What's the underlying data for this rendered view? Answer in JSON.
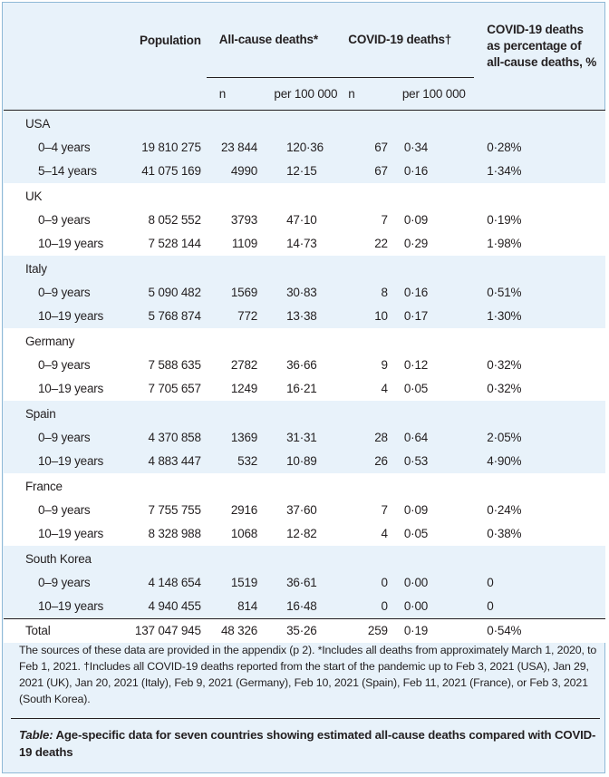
{
  "header": {
    "population": "Population",
    "all_cause": "All-cause deaths*",
    "covid": "COVID-19 deaths†",
    "pct": [
      "COVID-19 deaths",
      "as percentage of",
      "all-cause deaths, %"
    ],
    "n": "n",
    "per": "per 100 000"
  },
  "groups": [
    {
      "country": "USA",
      "rows": [
        {
          "age": "0–4 years",
          "pop": "19 810 275",
          "ac_n": "23 844",
          "ac_per": "120·36",
          "cv_n": "67",
          "cv_per": "0·34",
          "pct": "0·28%"
        },
        {
          "age": "5–14 years",
          "pop": "41 075 169",
          "ac_n": "4990",
          "ac_per": "12·15",
          "cv_n": "67",
          "cv_per": "0·16",
          "pct": "1·34%"
        }
      ]
    },
    {
      "country": "UK",
      "rows": [
        {
          "age": "0–9 years",
          "pop": "8 052 552",
          "ac_n": "3793",
          "ac_per": "47·10",
          "cv_n": "7",
          "cv_per": "0·09",
          "pct": "0·19%"
        },
        {
          "age": "10–19 years",
          "pop": "7 528 144",
          "ac_n": "1109",
          "ac_per": "14·73",
          "cv_n": "22",
          "cv_per": "0·29",
          "pct": "1·98%"
        }
      ]
    },
    {
      "country": "Italy",
      "rows": [
        {
          "age": "0–9 years",
          "pop": "5 090 482",
          "ac_n": "1569",
          "ac_per": "30·83",
          "cv_n": "8",
          "cv_per": "0·16",
          "pct": "0·51%"
        },
        {
          "age": "10–19 years",
          "pop": "5 768 874",
          "ac_n": "772",
          "ac_per": "13·38",
          "cv_n": "10",
          "cv_per": "0·17",
          "pct": "1·30%"
        }
      ]
    },
    {
      "country": "Germany",
      "rows": [
        {
          "age": "0–9 years",
          "pop": "7 588 635",
          "ac_n": "2782",
          "ac_per": "36·66",
          "cv_n": "9",
          "cv_per": "0·12",
          "pct": "0·32%"
        },
        {
          "age": "10–19 years",
          "pop": "7 705 657",
          "ac_n": "1249",
          "ac_per": "16·21",
          "cv_n": "4",
          "cv_per": "0·05",
          "pct": "0·32%"
        }
      ]
    },
    {
      "country": "Spain",
      "rows": [
        {
          "age": "0–9 years",
          "pop": "4 370 858",
          "ac_n": "1369",
          "ac_per": "31·31",
          "cv_n": "28",
          "cv_per": "0·64",
          "pct": "2·05%"
        },
        {
          "age": "10–19 years",
          "pop": "4 883 447",
          "ac_n": "532",
          "ac_per": "10·89",
          "cv_n": "26",
          "cv_per": "0·53",
          "pct": "4·90%"
        }
      ]
    },
    {
      "country": "France",
      "rows": [
        {
          "age": "0–9 years",
          "pop": "7 755 755",
          "ac_n": "2916",
          "ac_per": "37·60",
          "cv_n": "7",
          "cv_per": "0·09",
          "pct": "0·24%"
        },
        {
          "age": "10–19 years",
          "pop": "8 328 988",
          "ac_n": "1068",
          "ac_per": "12·82",
          "cv_n": "4",
          "cv_per": "0·05",
          "pct": "0·38%"
        }
      ]
    },
    {
      "country": "South Korea",
      "rows": [
        {
          "age": "0–9 years",
          "pop": "4 148 654",
          "ac_n": "1519",
          "ac_per": "36·61",
          "cv_n": "0",
          "cv_per": "0·00",
          "pct": "0"
        },
        {
          "age": "10–19 years",
          "pop": "4 940 455",
          "ac_n": "814",
          "ac_per": "16·48",
          "cv_n": "0",
          "cv_per": "0·00",
          "pct": "0"
        }
      ]
    }
  ],
  "total": {
    "label": "Total",
    "pop": "137 047 945",
    "ac_n": "48 326",
    "ac_per": "35·26",
    "cv_n": "259",
    "cv_per": "0·19",
    "pct": "0·54%"
  },
  "footnote": "The sources of these data are provided in the appendix (p 2). *Includes all deaths from approximately March 1, 2020, to Feb 1, 2021. †Includes all COVID-19 deaths reported from the start of the pandemic up to Feb 3, 2021 (USA), Jan 29, 2021 (UK), Jan 20, 2021 (Italy), Feb 9, 2021 (Germany), Feb 10, 2021 (Spain), Feb 11, 2021 (France), or Feb 3, 2021 (South Korea).",
  "caption": {
    "label": "Table:",
    "text": " Age-specific data for seven countries showing estimated all-cause deaths compared with COVID-19 deaths"
  }
}
